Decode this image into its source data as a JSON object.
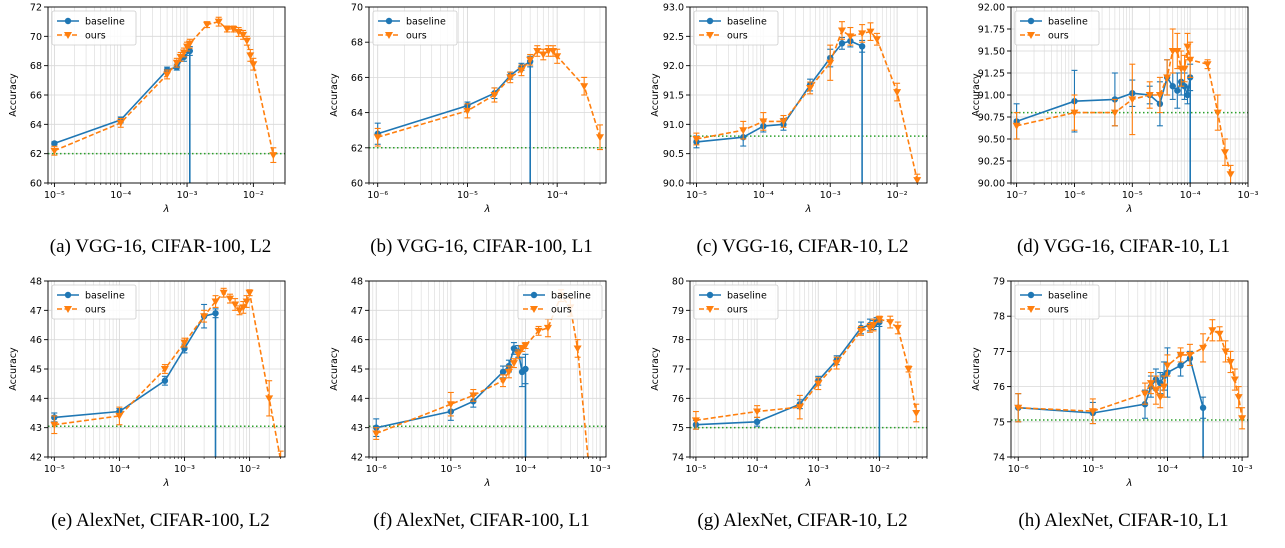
{
  "figure": {
    "legend_labels": [
      "baseline",
      "ours"
    ],
    "colors": {
      "baseline": "#1f77b4",
      "ours": "#ff7f0e",
      "reference": "#2ca02c",
      "grid": "#d9d9d9"
    }
  },
  "chart_data": [
    {
      "type": "line",
      "caption": "(a) VGG-16, CIFAR-100, L2",
      "xlabel": "λ",
      "ylabel": "Accuracy",
      "xscale": "log",
      "xlim": [
        8e-06,
        0.03
      ],
      "ylim": [
        60,
        72
      ],
      "xticks": [
        1e-05,
        0.0001,
        0.001,
        0.01
      ],
      "xtick_labels": [
        "10⁻⁵",
        "10⁻⁴",
        "10⁻³",
        "10⁻²"
      ],
      "yticks": [
        60,
        62,
        64,
        66,
        68,
        70,
        72
      ],
      "ytick_labels": [
        "60",
        "62",
        "64",
        "66",
        "68",
        "70",
        "72"
      ],
      "reference_line": 62.0,
      "legend_position": "upper left",
      "series": [
        {
          "name": "baseline",
          "drop_to_bottom": true,
          "x": [
            1e-05,
            0.0001,
            0.0005,
            0.0007,
            0.0009,
            0.0011
          ],
          "y": [
            62.7,
            64.3,
            67.7,
            67.9,
            68.6,
            69.0
          ],
          "err": [
            0.1,
            0.2,
            0.2,
            0.2,
            0.3,
            0.3
          ]
        },
        {
          "name": "ours",
          "x": [
            1e-05,
            0.0001,
            0.0005,
            0.0007,
            0.0008,
            0.0009,
            0.001,
            0.0011,
            0.002,
            0.003,
            0.004,
            0.005,
            0.006,
            0.007,
            0.008,
            0.009,
            0.01,
            0.02
          ],
          "y": [
            62.2,
            64.1,
            67.4,
            68.2,
            68.6,
            68.9,
            69.3,
            69.5,
            70.8,
            71.0,
            70.5,
            70.5,
            70.3,
            70.1,
            69.7,
            68.7,
            68.1,
            61.9
          ],
          "err": [
            0.3,
            0.3,
            0.3,
            0.3,
            0.3,
            0.3,
            0.3,
            0.3,
            0.2,
            0.3,
            0.2,
            0.2,
            0.3,
            0.3,
            0.3,
            0.4,
            0.4,
            0.5
          ]
        }
      ]
    },
    {
      "type": "line",
      "caption": "(b) VGG-16, CIFAR-100, L1",
      "xlabel": "λ",
      "ylabel": "Accuracy",
      "xscale": "log",
      "xlim": [
        8e-07,
        0.00035
      ],
      "ylim": [
        60,
        70
      ],
      "xticks": [
        1e-06,
        1e-05,
        0.0001
      ],
      "xtick_labels": [
        "10⁻⁶",
        "10⁻⁵",
        "10⁻⁴"
      ],
      "yticks": [
        60,
        62,
        64,
        66,
        68,
        70
      ],
      "ytick_labels": [
        "60",
        "62",
        "64",
        "66",
        "68",
        "70"
      ],
      "reference_line": 62.0,
      "legend_position": "upper left",
      "series": [
        {
          "name": "baseline",
          "drop_to_bottom": true,
          "x": [
            1e-06,
            1e-05,
            2e-05,
            3e-05,
            4e-05,
            5e-05
          ],
          "y": [
            62.8,
            64.4,
            65.1,
            66.1,
            66.6,
            66.9
          ],
          "err": [
            0.6,
            0.2,
            0.3,
            0.2,
            0.2,
            0.3
          ]
        },
        {
          "name": "ours",
          "x": [
            1e-06,
            1e-05,
            2e-05,
            3e-05,
            4e-05,
            5e-05,
            6e-05,
            7e-05,
            8e-05,
            9e-05,
            0.0001,
            0.0002,
            0.0003
          ],
          "y": [
            62.6,
            64.1,
            65.0,
            66.0,
            66.4,
            67.0,
            67.5,
            67.3,
            67.5,
            67.5,
            67.2,
            65.5,
            62.6
          ],
          "err": [
            0.5,
            0.4,
            0.4,
            0.3,
            0.3,
            0.3,
            0.3,
            0.3,
            0.3,
            0.3,
            0.4,
            0.5,
            0.7
          ]
        }
      ]
    },
    {
      "type": "line",
      "caption": "(c) VGG-16, CIFAR-10, L2",
      "xlabel": "λ",
      "ylabel": "Accuracy",
      "xscale": "log",
      "xlim": [
        8e-06,
        0.028
      ],
      "ylim": [
        90.0,
        93.0
      ],
      "xticks": [
        1e-05,
        0.0001,
        0.001,
        0.01
      ],
      "xtick_labels": [
        "10⁻⁵",
        "10⁻⁴",
        "10⁻³",
        "10⁻²"
      ],
      "yticks": [
        90.0,
        90.5,
        91.0,
        91.5,
        92.0,
        92.5,
        93.0
      ],
      "ytick_labels": [
        "90.0",
        "90.5",
        "91.0",
        "91.5",
        "92.0",
        "92.5",
        "93.0"
      ],
      "reference_line": 90.8,
      "legend_position": "upper left",
      "series": [
        {
          "name": "baseline",
          "drop_to_bottom": true,
          "x": [
            1e-05,
            5e-05,
            0.0001,
            0.0002,
            0.0005,
            0.001,
            0.0015,
            0.002,
            0.003
          ],
          "y": [
            90.7,
            90.78,
            90.97,
            91.0,
            91.67,
            92.13,
            92.38,
            92.42,
            92.33
          ],
          "err": [
            0.1,
            0.15,
            0.1,
            0.1,
            0.1,
            0.15,
            0.1,
            0.1,
            0.1
          ]
        },
        {
          "name": "ours",
          "x": [
            1e-05,
            5e-05,
            0.0001,
            0.0002,
            0.0005,
            0.001,
            0.0015,
            0.002,
            0.003,
            0.004,
            0.005,
            0.01,
            0.02
          ],
          "y": [
            90.75,
            90.9,
            91.05,
            91.05,
            91.62,
            92.05,
            92.6,
            92.5,
            92.55,
            92.58,
            92.45,
            91.55,
            90.05
          ],
          "err": [
            0.1,
            0.15,
            0.15,
            0.1,
            0.1,
            0.3,
            0.15,
            0.15,
            0.15,
            0.15,
            0.1,
            0.15,
            0.1
          ]
        }
      ]
    },
    {
      "type": "line",
      "caption": "(d) VGG-16, CIFAR-10, L1",
      "xlabel": "λ",
      "ylabel": "Accuracy",
      "xscale": "log",
      "xlim": [
        8e-08,
        0.001
      ],
      "ylim": [
        90.0,
        92.0
      ],
      "xticks": [
        1e-07,
        1e-06,
        1e-05,
        0.0001,
        0.001
      ],
      "xtick_labels": [
        "10⁻⁷",
        "10⁻⁶",
        "10⁻⁵",
        "10⁻⁴",
        "10⁻³"
      ],
      "yticks": [
        90.0,
        90.25,
        90.5,
        90.75,
        91.0,
        91.25,
        91.5,
        91.75,
        92.0
      ],
      "ytick_labels": [
        "90.00",
        "90.25",
        "90.50",
        "90.75",
        "91.00",
        "91.25",
        "91.50",
        "91.75",
        "92.00"
      ],
      "reference_line": 90.8,
      "legend_position": "upper left",
      "series": [
        {
          "name": "baseline",
          "drop_to_bottom": true,
          "x": [
            1e-07,
            1e-06,
            5e-06,
            1e-05,
            2e-05,
            3e-05,
            4e-05,
            5e-05,
            6e-05,
            7e-05,
            8e-05,
            9e-05,
            0.0001
          ],
          "y": [
            90.7,
            90.93,
            90.95,
            91.02,
            91.0,
            90.9,
            91.2,
            91.1,
            91.05,
            91.15,
            91.1,
            91.0,
            91.2
          ],
          "err": [
            0.2,
            0.35,
            0.3,
            0.15,
            0.1,
            0.25,
            0.2,
            0.15,
            0.2,
            0.15,
            0.15,
            0.1,
            0.15
          ]
        },
        {
          "name": "ours",
          "x": [
            1e-07,
            1e-06,
            5e-06,
            1e-05,
            2e-05,
            3e-05,
            4e-05,
            5e-05,
            6e-05,
            7e-05,
            8e-05,
            9e-05,
            0.0001,
            0.0002,
            0.0003,
            0.0004,
            0.0005
          ],
          "y": [
            90.65,
            90.8,
            90.8,
            90.95,
            91.0,
            91.0,
            91.2,
            91.5,
            91.5,
            91.3,
            91.3,
            91.55,
            91.4,
            91.35,
            90.8,
            90.35,
            90.1
          ],
          "err": [
            0.15,
            0.2,
            0.15,
            0.4,
            0.15,
            0.2,
            0.2,
            0.25,
            0.2,
            0.2,
            0.15,
            0.15,
            0.2,
            0.05,
            0.2,
            0.15,
            0.1
          ]
        }
      ]
    },
    {
      "type": "line",
      "caption": "(e) AlexNet, CIFAR-100, L2",
      "xlabel": "λ",
      "ylabel": "Accuracy",
      "xscale": "log",
      "xlim": [
        8e-06,
        0.035
      ],
      "ylim": [
        42,
        48
      ],
      "xticks": [
        1e-05,
        0.0001,
        0.001,
        0.01
      ],
      "xtick_labels": [
        "10⁻⁵",
        "10⁻⁴",
        "10⁻³",
        "10⁻²"
      ],
      "yticks": [
        42,
        43,
        44,
        45,
        46,
        47,
        48
      ],
      "ytick_labels": [
        "42",
        "43",
        "44",
        "45",
        "46",
        "47",
        "48"
      ],
      "reference_line": 43.05,
      "legend_position": "upper left",
      "series": [
        {
          "name": "baseline",
          "drop_to_bottom": true,
          "x": [
            1e-05,
            0.0001,
            0.0005,
            0.001,
            0.002,
            0.003
          ],
          "y": [
            43.35,
            43.55,
            44.6,
            45.7,
            46.8,
            46.9
          ],
          "err": [
            0.15,
            0.1,
            0.15,
            0.15,
            0.4,
            0.15
          ]
        },
        {
          "name": "ours",
          "x": [
            1e-05,
            0.0001,
            0.0005,
            0.001,
            0.002,
            0.003,
            0.004,
            0.005,
            0.006,
            0.007,
            0.008,
            0.009,
            0.01,
            0.02,
            0.03
          ],
          "y": [
            43.1,
            43.4,
            45.0,
            45.9,
            46.8,
            47.3,
            47.6,
            47.4,
            47.2,
            47.0,
            47.1,
            47.3,
            47.6,
            44.0,
            41.9
          ],
          "err": [
            0.3,
            0.3,
            0.15,
            0.15,
            0.2,
            0.2,
            0.15,
            0.15,
            0.2,
            0.15,
            0.2,
            0.2,
            0.1,
            0.6,
            0.3
          ]
        }
      ]
    },
    {
      "type": "line",
      "caption": "(f) AlexNet, CIFAR-100, L1",
      "xlabel": "λ",
      "ylabel": "Accuracy",
      "xscale": "log",
      "xlim": [
        8e-07,
        0.0012
      ],
      "ylim": [
        42,
        48
      ],
      "xticks": [
        1e-06,
        1e-05,
        0.0001,
        0.001
      ],
      "xtick_labels": [
        "10⁻⁶",
        "10⁻⁵",
        "10⁻⁴",
        "10⁻³"
      ],
      "yticks": [
        42,
        43,
        44,
        45,
        46,
        47,
        48
      ],
      "ytick_labels": [
        "42",
        "43",
        "44",
        "45",
        "46",
        "47",
        "48"
      ],
      "reference_line": 43.05,
      "legend_position": "upper right",
      "series": [
        {
          "name": "baseline",
          "drop_to_bottom": true,
          "x": [
            1e-06,
            1e-05,
            2e-05,
            5e-05,
            6e-05,
            7e-05,
            8e-05,
            9e-05,
            0.0001
          ],
          "y": [
            43.0,
            43.55,
            43.9,
            44.9,
            45.1,
            45.7,
            45.6,
            44.9,
            45.0
          ],
          "err": [
            0.3,
            0.3,
            0.2,
            0.2,
            0.2,
            0.2,
            0.2,
            0.5,
            0.5
          ]
        },
        {
          "name": "ours",
          "x": [
            1e-06,
            1e-05,
            2e-05,
            5e-05,
            6e-05,
            7e-05,
            8e-05,
            9e-05,
            0.0001,
            0.00015,
            0.0002,
            0.0003,
            0.0004,
            0.0005,
            0.0007
          ],
          "y": [
            42.8,
            43.8,
            44.1,
            44.6,
            44.9,
            45.2,
            45.5,
            45.7,
            45.8,
            46.3,
            46.4,
            47.5,
            47.1,
            45.7,
            41.8
          ],
          "err": [
            0.2,
            0.4,
            0.2,
            0.2,
            0.2,
            0.15,
            0.15,
            0.1,
            0.1,
            0.15,
            0.3,
            0.2,
            0.3,
            0.3,
            0.2
          ]
        }
      ]
    },
    {
      "type": "line",
      "caption": "(g) AlexNet, CIFAR-10, L2",
      "xlabel": "λ",
      "ylabel": "Accuracy",
      "xscale": "log",
      "xlim": [
        8e-06,
        0.06
      ],
      "ylim": [
        74,
        80
      ],
      "xticks": [
        1e-05,
        0.0001,
        0.001,
        0.01
      ],
      "xtick_labels": [
        "10⁻⁵",
        "10⁻⁴",
        "10⁻³",
        "10⁻²"
      ],
      "yticks": [
        74,
        75,
        76,
        77,
        78,
        79,
        80
      ],
      "ytick_labels": [
        "74",
        "75",
        "76",
        "77",
        "78",
        "79",
        "80"
      ],
      "reference_line": 75.0,
      "legend_position": "upper left",
      "series": [
        {
          "name": "baseline",
          "drop_to_bottom": true,
          "x": [
            1e-05,
            0.0001,
            0.0005,
            0.001,
            0.002,
            0.005,
            0.007,
            0.008,
            0.009,
            0.01
          ],
          "y": [
            75.1,
            75.2,
            75.8,
            76.6,
            77.3,
            78.4,
            78.5,
            78.5,
            78.6,
            78.6
          ],
          "err": [
            0.15,
            0.15,
            0.15,
            0.15,
            0.15,
            0.2,
            0.2,
            0.15,
            0.15,
            0.15
          ]
        },
        {
          "name": "ours",
          "x": [
            1e-05,
            0.0001,
            0.0005,
            0.001,
            0.002,
            0.005,
            0.007,
            0.008,
            0.01,
            0.015,
            0.02,
            0.03,
            0.04
          ],
          "y": [
            75.25,
            75.55,
            75.7,
            76.5,
            77.2,
            78.3,
            78.4,
            78.5,
            78.7,
            78.6,
            78.4,
            77.0,
            75.5
          ],
          "err": [
            0.3,
            0.2,
            0.4,
            0.2,
            0.2,
            0.15,
            0.15,
            0.2,
            0.1,
            0.2,
            0.2,
            0.1,
            0.3
          ]
        }
      ]
    },
    {
      "type": "line",
      "caption": "(h) AlexNet, CIFAR-10, L1",
      "xlabel": "λ",
      "ylabel": "Accuracy",
      "xscale": "log",
      "xlim": [
        8e-07,
        0.0012
      ],
      "ylim": [
        74,
        79
      ],
      "xticks": [
        1e-06,
        1e-05,
        0.0001,
        0.001
      ],
      "xtick_labels": [
        "10⁻⁶",
        "10⁻⁵",
        "10⁻⁴",
        "10⁻³"
      ],
      "yticks": [
        74,
        75,
        76,
        77,
        78,
        79
      ],
      "ytick_labels": [
        "74",
        "75",
        "76",
        "77",
        "78",
        "79"
      ],
      "reference_line": 75.05,
      "legend_position": "upper left",
      "series": [
        {
          "name": "baseline",
          "drop_to_bottom": true,
          "x": [
            1e-06,
            1e-05,
            5e-05,
            6e-05,
            7e-05,
            8e-05,
            9e-05,
            0.0001,
            0.00015,
            0.0002,
            0.0003
          ],
          "y": [
            75.4,
            75.25,
            75.5,
            76.0,
            76.2,
            76.1,
            76.3,
            76.4,
            76.6,
            76.8,
            75.4
          ],
          "err": [
            0.4,
            0.3,
            0.4,
            0.3,
            0.3,
            0.3,
            0.4,
            0.7,
            0.3,
            0.2,
            0.3
          ]
        },
        {
          "name": "ours",
          "x": [
            1e-06,
            1e-05,
            5e-05,
            6e-05,
            7e-05,
            8e-05,
            9e-05,
            0.0001,
            0.00015,
            0.0002,
            0.0003,
            0.0004,
            0.0005,
            0.0006,
            0.0007,
            0.0008,
            0.0009,
            0.001
          ],
          "y": [
            75.4,
            75.3,
            75.8,
            76.1,
            75.9,
            75.7,
            76.0,
            76.6,
            76.9,
            76.9,
            77.1,
            77.6,
            77.5,
            77.0,
            76.7,
            76.2,
            75.7,
            75.1
          ],
          "err": [
            0.4,
            0.35,
            0.3,
            0.3,
            0.4,
            0.3,
            0.3,
            0.3,
            0.2,
            0.3,
            0.4,
            0.3,
            0.2,
            0.3,
            0.3,
            0.3,
            0.3,
            0.3
          ]
        }
      ]
    }
  ]
}
